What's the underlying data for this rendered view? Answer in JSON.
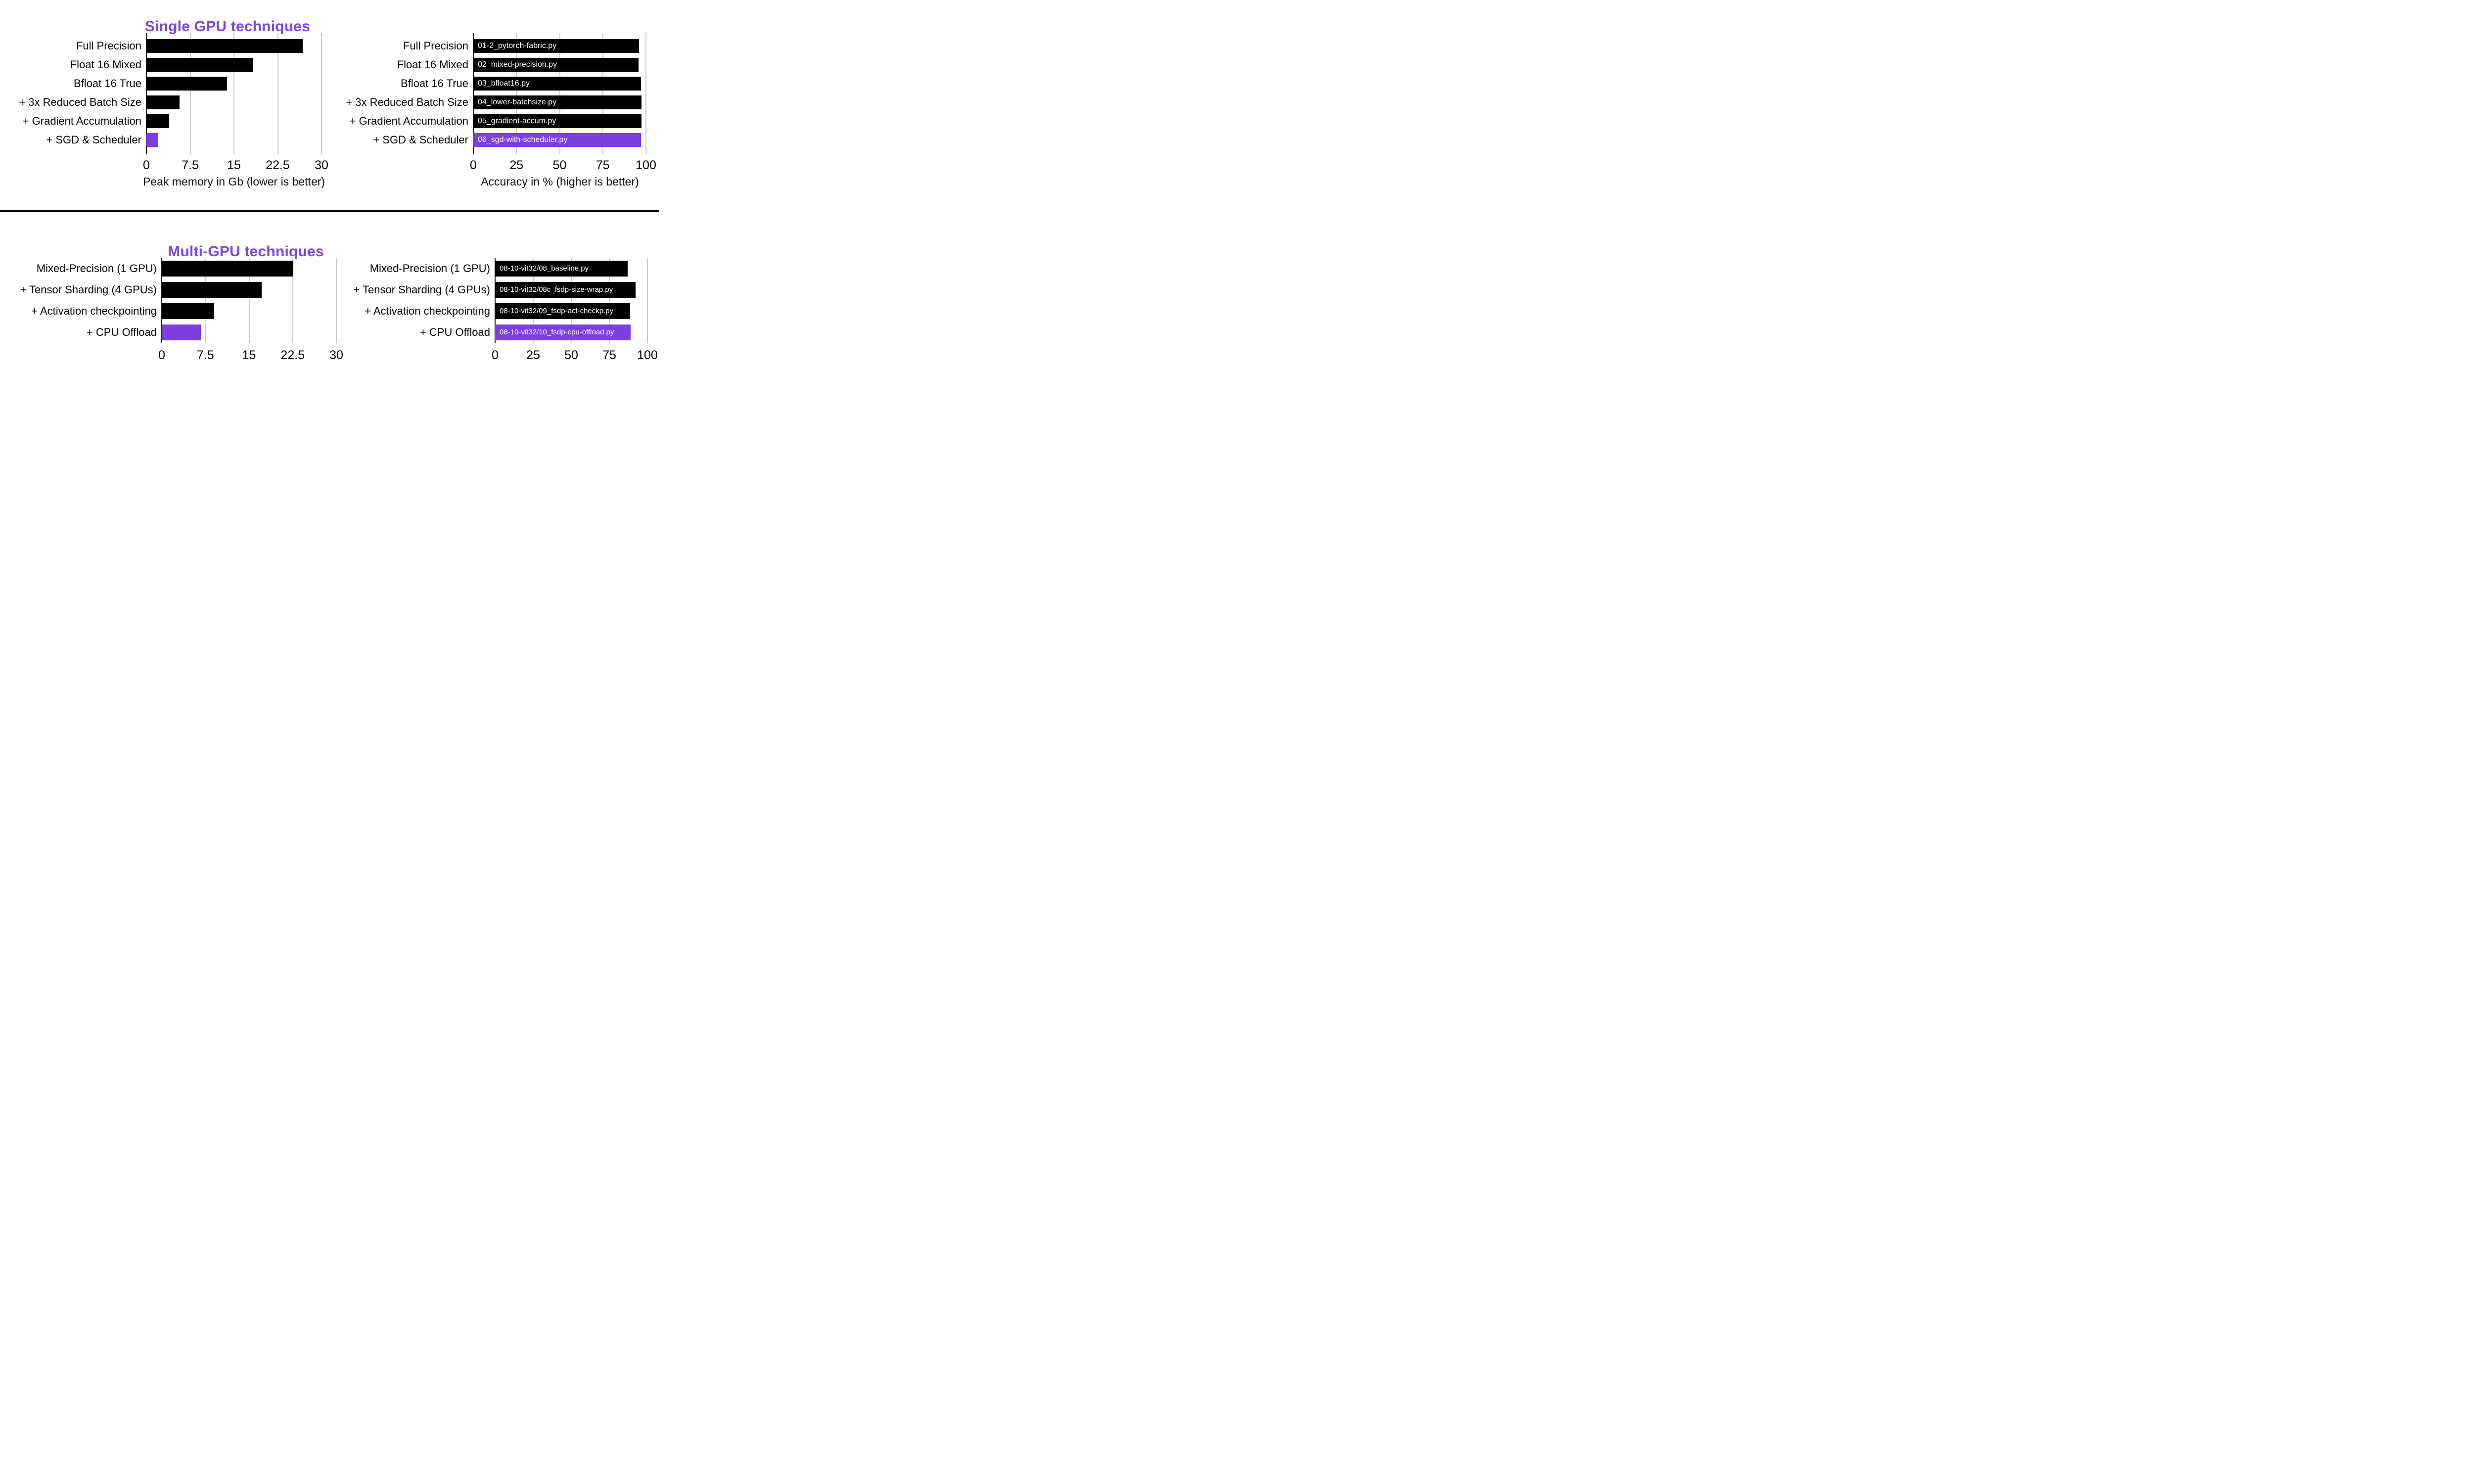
{
  "colors": {
    "bar": "#000000",
    "highlight": "#7b3fe0",
    "title": "#7a46dd",
    "gridline": "#c9c9c9",
    "axis": "#1a1a1a",
    "divider": "#000000",
    "bar_label_text": "#ffffff"
  },
  "chart_data": [
    {
      "type": "bar",
      "orientation": "horizontal",
      "title": "Single GPU techniques",
      "categories": [
        "Full Precision",
        "Float 16 Mixed",
        "Bfloat 16 True",
        "+ 3x Reduced Batch Size",
        "+ Gradient Accumulation",
        "+ SGD & Scheduler"
      ],
      "values": [
        26.8,
        18.2,
        13.8,
        5.7,
        3.9,
        2.0
      ],
      "bar_labels": null,
      "highlight_index": 5,
      "xlabel": "Peak memory in Gb (lower is better)",
      "xlim": [
        0,
        30
      ],
      "ticks": [
        "0",
        "7.5",
        "15",
        "22.5",
        "30"
      ],
      "grid": "vertical-gridlines-on"
    },
    {
      "type": "bar",
      "orientation": "horizontal",
      "title": "",
      "categories": [
        "Full Precision",
        "Float 16 Mixed",
        "Bfloat 16 True",
        "+ 3x Reduced Batch Size",
        "+ Gradient Accumulation",
        "+ SGD & Scheduler"
      ],
      "values": [
        96.1,
        95.8,
        97.0,
        97.3,
        97.3,
        97.2
      ],
      "bar_labels": [
        "01-2_pytorch-fabric.py",
        "02_mixed-precision.py",
        "03_bfloat16.py",
        "04_lower-batchsize.py",
        "05_gradient-accum.py",
        "06_sgd-with-scheduler.py"
      ],
      "highlight_index": 5,
      "xlabel": "Accuracy in % (higher is better)",
      "xlim": [
        0,
        100
      ],
      "ticks": [
        "0",
        "25",
        "50",
        "75",
        "100"
      ],
      "grid": "vertical-gridlines-on"
    },
    {
      "type": "bar",
      "orientation": "horizontal",
      "title": "Multi-GPU techniques",
      "categories": [
        "Mixed-Precision (1 GPU)",
        "+ Tensor Sharding (4 GPUs)",
        "+ Activation checkpointing",
        "+ CPU Offload"
      ],
      "values": [
        22.6,
        17.2,
        9.0,
        6.7
      ],
      "bar_labels": null,
      "highlight_index": 3,
      "xlabel": "",
      "xlim": [
        0,
        30
      ],
      "ticks": [
        "0",
        "7.5",
        "15",
        "22.5",
        "30"
      ],
      "grid": "vertical-gridlines-on"
    },
    {
      "type": "bar",
      "orientation": "horizontal",
      "title": "",
      "categories": [
        "Mixed-Precision (1 GPU)",
        "+ Tensor Sharding (4 GPUs)",
        "+ Activation checkpointing",
        "+ CPU Offload"
      ],
      "values": [
        87.0,
        92.3,
        88.6,
        88.8
      ],
      "bar_labels": [
        "08-10-vit32/08_baseline.py",
        "08-10-vit32/08c_fsdp-size-wrap.py",
        "08-10-vit32/09_fsdp-act-checkp.py",
        "08-10-vit32/10_fsdp-cpu-offload.py"
      ],
      "highlight_index": 3,
      "xlabel": "",
      "xlim": [
        0,
        100
      ],
      "ticks": [
        "0",
        "25",
        "50",
        "75",
        "100"
      ],
      "grid": "vertical-gridlines-on"
    }
  ]
}
